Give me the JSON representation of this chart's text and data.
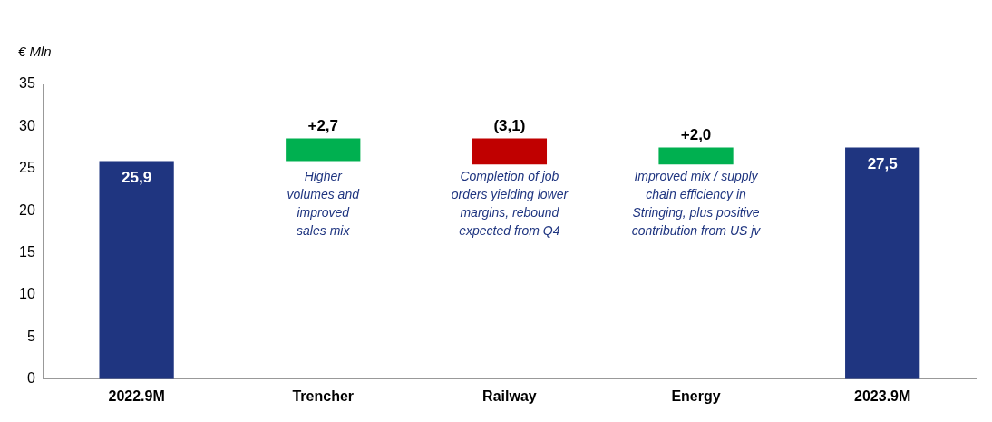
{
  "chart_data": {
    "type": "bar",
    "ylabel": "€ Mln",
    "categories": [
      "2022.9M",
      "Trencher",
      "Railway",
      "Energy",
      "2023.9M"
    ],
    "values": [
      25.9,
      2.7,
      -3.1,
      2.0,
      27.5
    ],
    "base": [
      0,
      25.9,
      28.6,
      25.5,
      0
    ],
    "colors": [
      "#1f3580",
      "#00b050",
      "#c00000",
      "#00b050",
      "#1f3580"
    ],
    "value_labels": [
      "25,9",
      "+2,7",
      "(3,1)",
      "+2,0",
      "27,5"
    ],
    "ylim": [
      0,
      35
    ],
    "yticks": [
      0,
      5,
      10,
      15,
      20,
      25,
      30,
      35
    ],
    "grid": false,
    "legend": false,
    "annotations": [
      "Higher\nvolumes and\nimproved\nsales mix",
      "Completion of job\norders yielding lower\nmargins, rebound\nexpected from Q4",
      "Improved mix / supply\nchain efficiency in\nStringing, plus positive\ncontribution from US jv"
    ]
  }
}
